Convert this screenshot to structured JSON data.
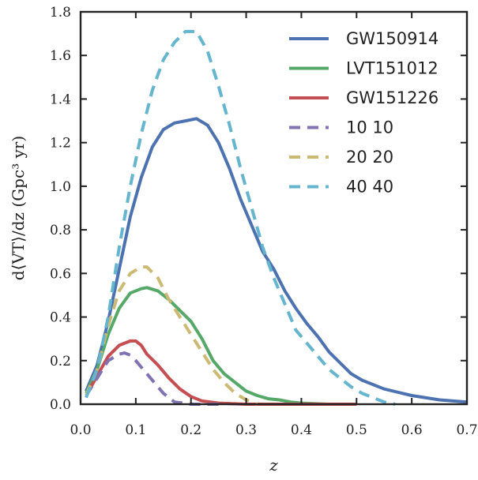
{
  "chart_data": {
    "type": "line",
    "title": "",
    "xlabel": "z",
    "ylabel": "d⟨VT⟩/dz (Gpc³ yr)",
    "xlim": [
      0.0,
      0.7
    ],
    "ylim": [
      0.0,
      1.8
    ],
    "xticks": [
      "0.0",
      "0.1",
      "0.2",
      "0.3",
      "0.4",
      "0.5",
      "0.6",
      "0.7"
    ],
    "yticks": [
      "0.0",
      "0.2",
      "0.4",
      "0.6",
      "0.8",
      "1.0",
      "1.2",
      "1.4",
      "1.6",
      "1.8"
    ],
    "grid": false,
    "legend_position": "top-right",
    "series": [
      {
        "name": "GW150914",
        "color": "#4c72b0",
        "style": "solid",
        "x": [
          0.01,
          0.03,
          0.05,
          0.07,
          0.09,
          0.11,
          0.13,
          0.15,
          0.17,
          0.19,
          0.21,
          0.23,
          0.25,
          0.27,
          0.29,
          0.31,
          0.33,
          0.35,
          0.37,
          0.39,
          0.41,
          0.43,
          0.45,
          0.47,
          0.49,
          0.51,
          0.55,
          0.6,
          0.65,
          0.7
        ],
        "y": [
          0.06,
          0.18,
          0.38,
          0.62,
          0.86,
          1.04,
          1.18,
          1.26,
          1.29,
          1.3,
          1.31,
          1.28,
          1.2,
          1.08,
          0.94,
          0.82,
          0.7,
          0.62,
          0.52,
          0.44,
          0.37,
          0.31,
          0.24,
          0.19,
          0.14,
          0.11,
          0.07,
          0.04,
          0.02,
          0.01
        ]
      },
      {
        "name": "LVT151012",
        "color": "#55a868",
        "style": "solid",
        "x": [
          0.01,
          0.03,
          0.05,
          0.07,
          0.09,
          0.11,
          0.12,
          0.14,
          0.16,
          0.18,
          0.2,
          0.22,
          0.24,
          0.26,
          0.28,
          0.3,
          0.32,
          0.34,
          0.36,
          0.38,
          0.4,
          0.45,
          0.5
        ],
        "y": [
          0.05,
          0.16,
          0.32,
          0.44,
          0.51,
          0.53,
          0.535,
          0.52,
          0.48,
          0.43,
          0.38,
          0.3,
          0.2,
          0.14,
          0.1,
          0.06,
          0.04,
          0.025,
          0.02,
          0.01,
          0.005,
          0.0,
          0.0
        ]
      },
      {
        "name": "GW151226",
        "color": "#c44e52",
        "style": "solid",
        "x": [
          0.01,
          0.03,
          0.05,
          0.07,
          0.09,
          0.1,
          0.11,
          0.12,
          0.14,
          0.16,
          0.18,
          0.2,
          0.22,
          0.25,
          0.3,
          0.35,
          0.4,
          0.5
        ],
        "y": [
          0.04,
          0.13,
          0.22,
          0.27,
          0.29,
          0.29,
          0.27,
          0.23,
          0.18,
          0.12,
          0.07,
          0.035,
          0.015,
          0.005,
          0.0,
          0.0,
          0.0,
          0.0
        ]
      },
      {
        "name": "10 10",
        "color": "#8172b2",
        "style": "dashed",
        "x": [
          0.01,
          0.03,
          0.05,
          0.07,
          0.08,
          0.09,
          0.1,
          0.11,
          0.13,
          0.15,
          0.17,
          0.2,
          0.25
        ],
        "y": [
          0.04,
          0.12,
          0.2,
          0.23,
          0.235,
          0.225,
          0.2,
          0.17,
          0.11,
          0.05,
          0.01,
          0.0,
          0.0
        ]
      },
      {
        "name": "20 20",
        "color": "#ccb974",
        "style": "dashed",
        "x": [
          0.01,
          0.03,
          0.05,
          0.07,
          0.09,
          0.11,
          0.12,
          0.14,
          0.16,
          0.18,
          0.2,
          0.22,
          0.24,
          0.26,
          0.28,
          0.3,
          0.32
        ],
        "y": [
          0.04,
          0.16,
          0.36,
          0.52,
          0.6,
          0.63,
          0.63,
          0.58,
          0.48,
          0.4,
          0.32,
          0.24,
          0.16,
          0.1,
          0.05,
          0.02,
          0.0
        ]
      },
      {
        "name": "40 40",
        "color": "#64b5cd",
        "style": "dashed",
        "x": [
          0.01,
          0.03,
          0.05,
          0.07,
          0.09,
          0.11,
          0.13,
          0.15,
          0.17,
          0.19,
          0.21,
          0.23,
          0.25,
          0.27,
          0.29,
          0.31,
          0.33,
          0.35,
          0.37,
          0.39,
          0.41,
          0.43,
          0.45,
          0.47,
          0.49,
          0.51,
          0.53,
          0.55,
          0.57
        ],
        "y": [
          0.03,
          0.16,
          0.4,
          0.72,
          1.0,
          1.24,
          1.44,
          1.58,
          1.66,
          1.71,
          1.71,
          1.62,
          1.46,
          1.28,
          1.08,
          0.9,
          0.72,
          0.58,
          0.46,
          0.34,
          0.28,
          0.22,
          0.16,
          0.12,
          0.08,
          0.05,
          0.03,
          0.01,
          0.0
        ]
      }
    ]
  }
}
